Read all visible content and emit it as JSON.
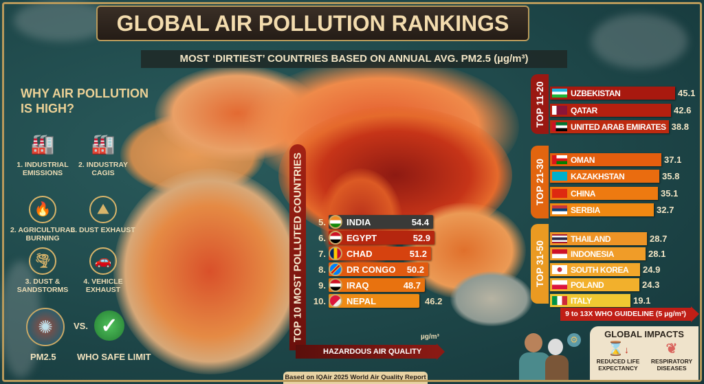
{
  "header": {
    "title": "GLOBAL AIR POLLUTION RANKINGS",
    "subtitle": "MOST ‘DIRTIEST’ COUNTRIES BASED ON ANNUAL AVG. PM2.5 (µg/m³)"
  },
  "causes": {
    "heading_line1": "WHY AIR POLLUTION",
    "heading_line2": "IS HIGH?",
    "items": [
      {
        "label": "1. INDUSTRIAL EMISSIONS",
        "icon": "factory-icon",
        "glyph": "🏭"
      },
      {
        "label": "2. INDUSTRAY CAGIS",
        "icon": "power-plant-icon",
        "glyph": "🏭"
      },
      {
        "label": "2. AGRICULTURAL BURNING",
        "icon": "field-fire-icon",
        "glyph": "🔥"
      },
      {
        "label": "3. DUST EXHAUST",
        "icon": "dust-pile-icon",
        "glyph": "⛰"
      },
      {
        "label": "3. DUST & SANDSTORMS",
        "icon": "sandstorm-icon",
        "glyph": "🌪"
      },
      {
        "label": "4. VEHICLE EXHAUST",
        "icon": "car-icon",
        "glyph": "🚗"
      }
    ],
    "pm_label": "PM2.5",
    "vs_label": "VS.",
    "who_label": "WHO SAFE LIMIT"
  },
  "top10": {
    "label": "TOP 10 MOST POLLUTED COUNTRIES",
    "unit": "µg/m³",
    "arrow_label": "HAZARDOUS AIR QUALITY",
    "items": [
      {
        "rank": "5.",
        "name": "INDIA",
        "value": "54.4",
        "flag": "in",
        "color": "#3a3a38"
      },
      {
        "rank": "6.",
        "name": "EGYPT",
        "value": "52.9",
        "flag": "eg",
        "color": "#b5260f"
      },
      {
        "rank": "7.",
        "name": "CHAD",
        "value": "51.2",
        "flag": "td",
        "color": "#d6420f"
      },
      {
        "rank": "8.",
        "name": "DR CONGO",
        "value": "50.2",
        "flag": "cd",
        "color": "#e05a10"
      },
      {
        "rank": "9.",
        "name": "IRAQ",
        "value": "48.7",
        "flag": "iq",
        "color": "#e8720f"
      },
      {
        "rank": "10.",
        "name": "NEPAL",
        "value": "46.2",
        "flag": "np",
        "color": "#ee8b14"
      }
    ]
  },
  "groups": [
    {
      "label": "TOP 11-20",
      "color": "#9a1812",
      "items": [
        {
          "name": "UZBEKISTAN",
          "value": "45.1",
          "flag": "uz",
          "color": "#a8190f"
        },
        {
          "name": "QATAR",
          "value": "42.6",
          "flag": "qa",
          "color": "#b4200f"
        },
        {
          "name": "UNITED ARAB EMIRATES",
          "value": "38.8",
          "flag": "ae",
          "color": "#bd2a10"
        }
      ]
    },
    {
      "label": "TOP 21-30",
      "color": "#e2650f",
      "items": [
        {
          "name": "OMAN",
          "value": "37.1",
          "flag": "om",
          "color": "#e55e0e"
        },
        {
          "name": "KAZAKHSTAN",
          "value": "35.8",
          "flag": "kz",
          "color": "#ea6c0f"
        },
        {
          "name": "CHINA",
          "value": "35.1",
          "flag": "cn",
          "color": "#ee7a10"
        },
        {
          "name": "SERBIA",
          "value": "32.7",
          "flag": "rs",
          "color": "#f08812"
        }
      ]
    },
    {
      "label": "TOP 31-50",
      "color": "#ea9a22",
      "items": [
        {
          "name": "THAILAND",
          "value": "28.7",
          "flag": "th",
          "color": "#ee9426"
        },
        {
          "name": "INDONESIA",
          "value": "28.1",
          "flag": "id",
          "color": "#f09c28"
        },
        {
          "name": "SOUTH KOREA",
          "value": "24.9",
          "flag": "kr",
          "color": "#f2a62a"
        },
        {
          "name": "POLAND",
          "value": "24.3",
          "flag": "pl",
          "color": "#f2b02c"
        },
        {
          "name": "ITALY",
          "value": "19.1",
          "flag": "it",
          "color": "#f0c832"
        }
      ]
    }
  ],
  "who_banner": "9 to 13X WHO GUIDELINE (5 µg/m³)",
  "impacts": {
    "title": "GLOBAL IMPACTS",
    "items": [
      {
        "label": "REDUCED LIFE EXPECTANCY",
        "icon": "hourglass-down-icon",
        "glyph": "⌛"
      },
      {
        "label": "RESPIRATORY DISEASES",
        "icon": "lungs-icon",
        "glyph": "🫁"
      }
    ]
  },
  "footer": "Based on IQAir 2025 World Air Quality Report"
}
